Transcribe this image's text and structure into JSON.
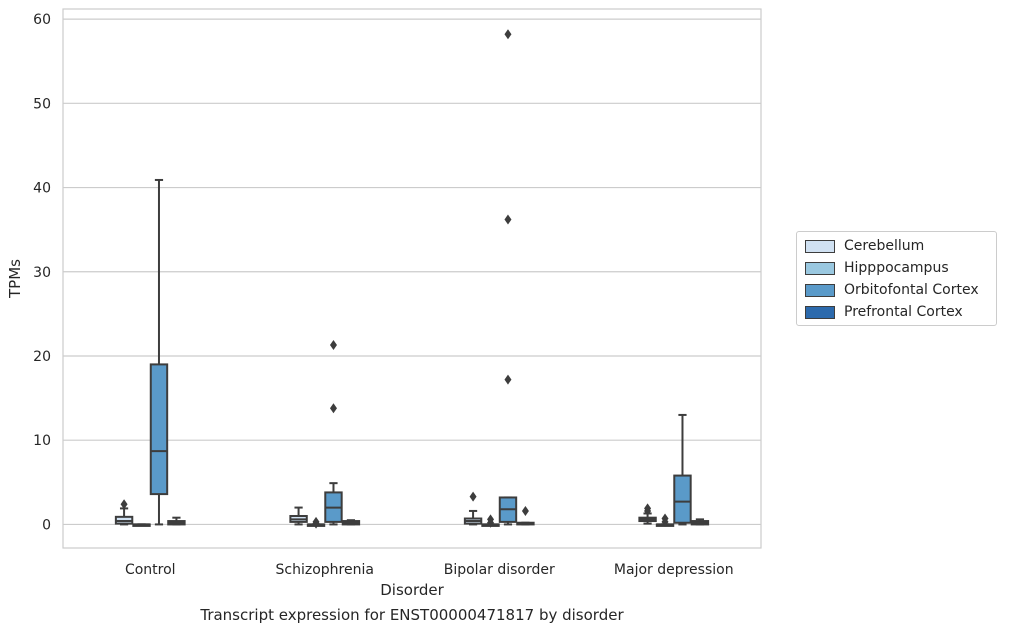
{
  "chart_data": {
    "type": "box",
    "xlabel": "Disorder",
    "ylabel": "TPMs",
    "caption": "Transcript expression for ENST00000471817 by disorder",
    "categories": [
      "Control",
      "Schizophrenia",
      "Bipolar disorder",
      "Major depression"
    ],
    "ylim": [
      -2.8,
      61.2
    ],
    "yticks": [
      0,
      10,
      20,
      30,
      40,
      50,
      60
    ],
    "grid": "horizontal",
    "legend_position": "right",
    "series": [
      {
        "name": "Cerebellum",
        "color": "#d0e1f2",
        "boxes": [
          {
            "category": "Control",
            "q1": 0.1,
            "median": 0.4,
            "q3": 0.9,
            "whisker_low": 0.0,
            "whisker_high": 1.9,
            "outliers": [
              2.4
            ]
          },
          {
            "category": "Schizophrenia",
            "q1": 0.3,
            "median": 0.6,
            "q3": 1.0,
            "whisker_low": 0.0,
            "whisker_high": 2.0,
            "outliers": []
          },
          {
            "category": "Bipolar disorder",
            "q1": 0.1,
            "median": 0.4,
            "q3": 0.7,
            "whisker_low": 0.0,
            "whisker_high": 1.6,
            "outliers": [
              3.3
            ]
          },
          {
            "category": "Major depression",
            "q1": 0.4,
            "median": 0.6,
            "q3": 0.8,
            "whisker_low": 0.1,
            "whisker_high": 1.3,
            "outliers": [
              1.6,
              1.9
            ]
          }
        ]
      },
      {
        "name": "Hipppocampus",
        "color": "#9ac8e0",
        "boxes": [
          {
            "category": "Control",
            "q1": 0.0,
            "median": 0.0,
            "q3": 0.0,
            "whisker_low": 0.0,
            "whisker_high": 0.0,
            "outliers": []
          },
          {
            "category": "Schizophrenia",
            "q1": 0.0,
            "median": 0.0,
            "q3": 0.0,
            "whisker_low": 0.0,
            "whisker_high": 0.0,
            "outliers": [
              0.1,
              0.3
            ]
          },
          {
            "category": "Bipolar disorder",
            "q1": 0.0,
            "median": 0.0,
            "q3": 0.0,
            "whisker_low": 0.0,
            "whisker_high": 0.0,
            "outliers": [
              0.2,
              0.6
            ]
          },
          {
            "category": "Major depression",
            "q1": 0.0,
            "median": 0.0,
            "q3": 0.0,
            "whisker_low": 0.0,
            "whisker_high": 0.0,
            "outliers": [
              0.3,
              0.7
            ]
          }
        ]
      },
      {
        "name": "Orbitofontal Cortex",
        "color": "#5a9ac9",
        "boxes": [
          {
            "category": "Control",
            "q1": 3.6,
            "median": 8.7,
            "q3": 19.0,
            "whisker_low": 0.0,
            "whisker_high": 40.9,
            "outliers": []
          },
          {
            "category": "Schizophrenia",
            "q1": 0.3,
            "median": 2.0,
            "q3": 3.8,
            "whisker_low": 0.0,
            "whisker_high": 4.9,
            "outliers": [
              13.8,
              21.3
            ]
          },
          {
            "category": "Bipolar disorder",
            "q1": 0.3,
            "median": 1.8,
            "q3": 3.2,
            "whisker_low": 0.0,
            "whisker_high": 3.2,
            "outliers": [
              17.2,
              36.2,
              58.2
            ]
          },
          {
            "category": "Major depression",
            "q1": 0.2,
            "median": 2.7,
            "q3": 5.8,
            "whisker_low": 0.0,
            "whisker_high": 13.0,
            "outliers": []
          }
        ]
      },
      {
        "name": "Prefrontal Cortex",
        "color": "#2c6aad",
        "boxes": [
          {
            "category": "Control",
            "q1": 0.0,
            "median": 0.2,
            "q3": 0.4,
            "whisker_low": 0.0,
            "whisker_high": 0.8,
            "outliers": []
          },
          {
            "category": "Schizophrenia",
            "q1": 0.0,
            "median": 0.2,
            "q3": 0.4,
            "whisker_low": 0.0,
            "whisker_high": 0.5,
            "outliers": []
          },
          {
            "category": "Bipolar disorder",
            "q1": 0.0,
            "median": 0.1,
            "q3": 0.2,
            "whisker_low": 0.0,
            "whisker_high": 0.2,
            "outliers": [
              1.6
            ]
          },
          {
            "category": "Major depression",
            "q1": 0.0,
            "median": 0.2,
            "q3": 0.4,
            "whisker_low": 0.0,
            "whisker_high": 0.6,
            "outliers": []
          }
        ]
      }
    ]
  }
}
